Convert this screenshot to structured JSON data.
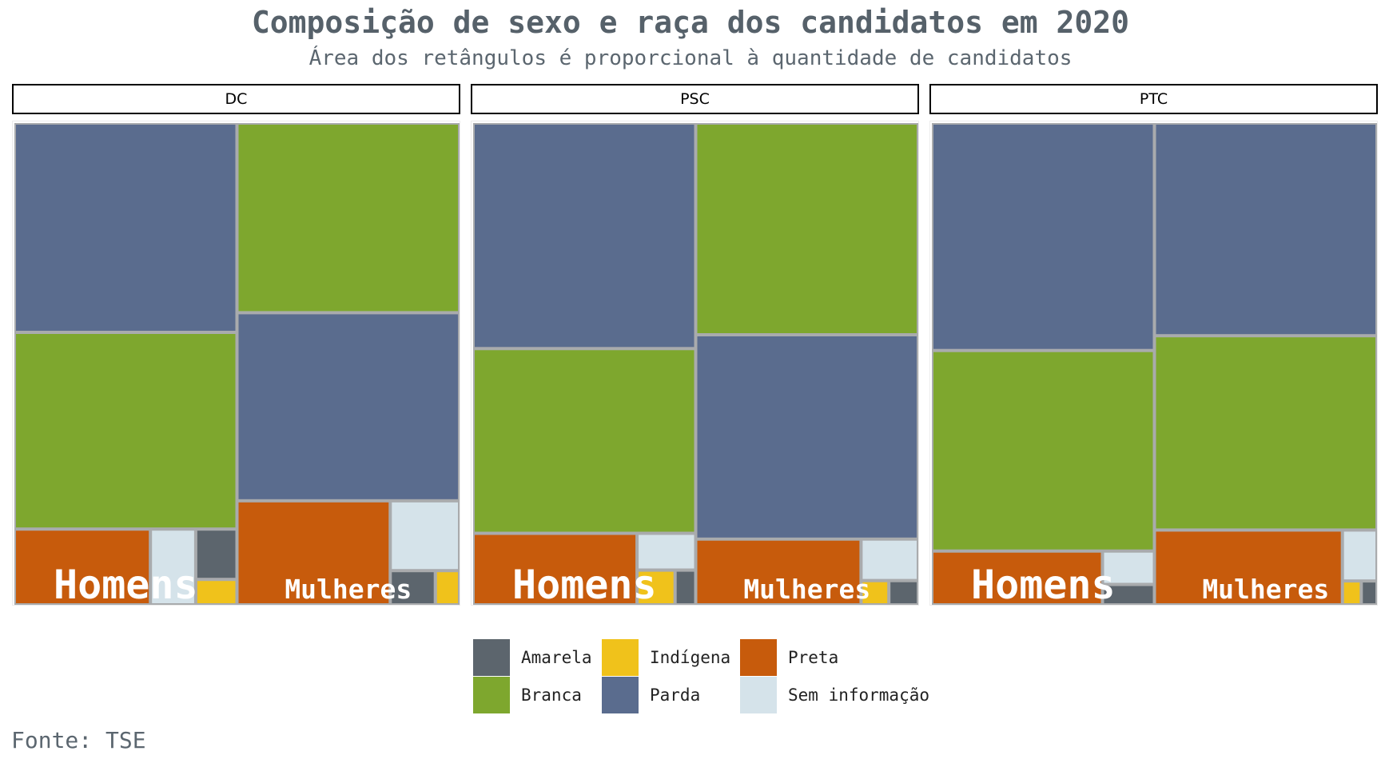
{
  "title": "Composição de sexo e raça dos candidatos em 2020",
  "subtitle": "Área dos retângulos é proporcional à quantidade de candidatos",
  "source": "Fonte: TSE",
  "colors": {
    "Amarela": "#5c656d",
    "Indígena": "#f0c21b",
    "Preta": "#c75b0c",
    "Branca": "#7ea72e",
    "Parda": "#5a6c8e",
    "Sem informação": "#d5e3ea",
    "border": "#a9abad"
  },
  "legend": {
    "items": [
      {
        "label": "Amarela",
        "color": "#5c656d"
      },
      {
        "label": "Indígena",
        "color": "#f0c21b"
      },
      {
        "label": "Preta",
        "color": "#c75b0c"
      },
      {
        "label": "Branca",
        "color": "#7ea72e"
      },
      {
        "label": "Parda",
        "color": "#5a6c8e"
      },
      {
        "label": "Sem informação",
        "color": "#d5e3ea"
      }
    ]
  },
  "chart_data": {
    "type": "treemap",
    "facets": [
      {
        "party": "DC",
        "groups": [
          {
            "label": "Homens",
            "values": {
              "Parda": 43.4,
              "Branca": 41.1,
              "Preta": 9.5,
              "Sem informação": 3.2,
              "Amarela": 1.9,
              "Indígena": 0.9
            }
          },
          {
            "label": "Mulheres",
            "values": {
              "Branca": 39.3,
              "Parda": 39.3,
              "Preta": 14.8,
              "Sem informação": 4.5,
              "Amarela": 1.4,
              "Indígena": 0.7
            }
          }
        ]
      },
      {
        "party": "PSC",
        "groups": [
          {
            "label": "Homens",
            "values": {
              "Parda": 46.8,
              "Branca": 38.6,
              "Preta": 10.8,
              "Sem informação": 2.0,
              "Indígena": 1.2,
              "Amarela": 0.6
            }
          },
          {
            "label": "Mulheres",
            "values": {
              "Parda": 42.7,
              "Branca": 43.9,
              "Preta": 10.0,
              "Sem informação": 2.2,
              "Indígena": 0.6,
              "Amarela": 0.6
            }
          }
        ]
      },
      {
        "party": "PTC",
        "groups": [
          {
            "label": "Homens",
            "values": {
              "Parda": 47.2,
              "Branca": 41.9,
              "Preta": 8.4,
              "Sem informação": 1.6,
              "Amarela": 0.9
            }
          },
          {
            "label": "Mulheres",
            "values": {
              "Parda": 44.1,
              "Branca": 40.6,
              "Preta": 13.0,
              "Sem informação": 1.6,
              "Indígena": 0.4,
              "Amarela": 0.3
            }
          }
        ]
      }
    ]
  }
}
